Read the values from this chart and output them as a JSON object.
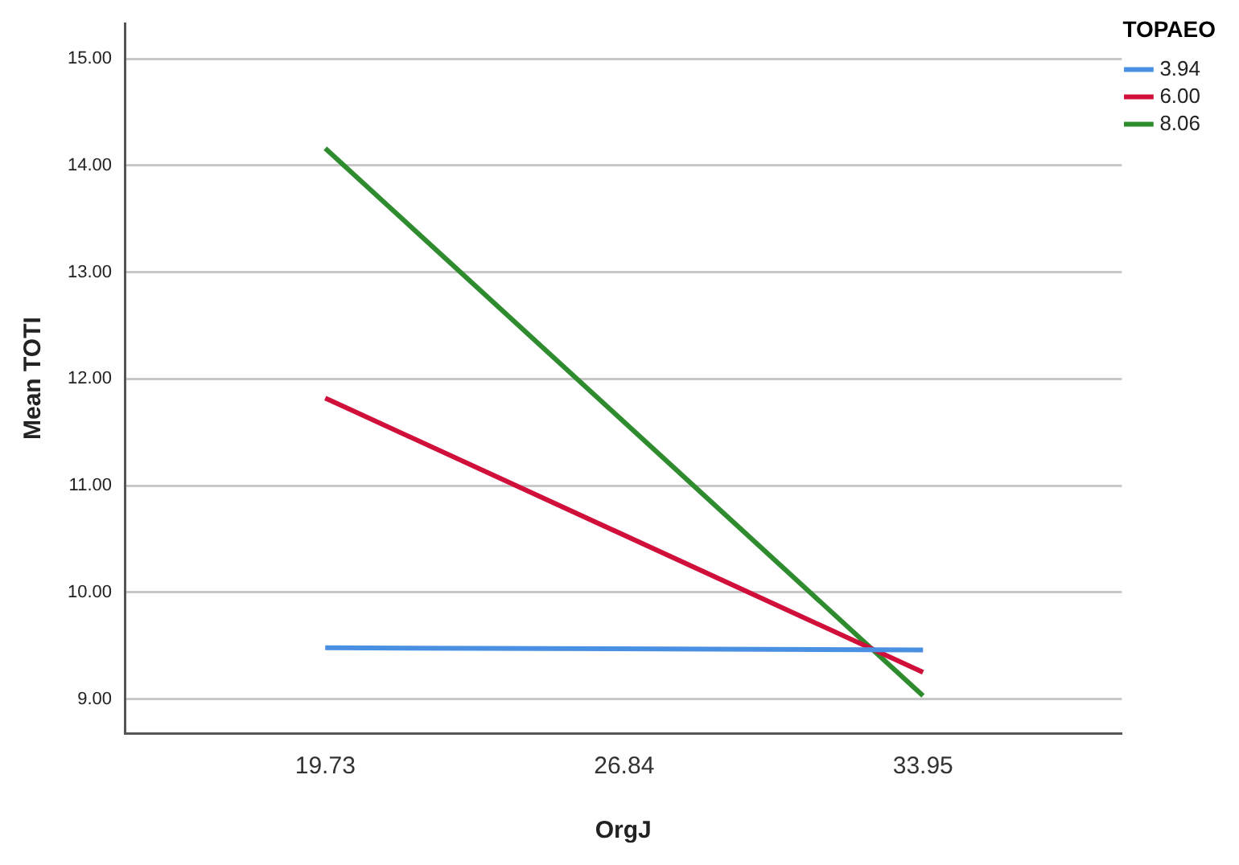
{
  "chart_data": {
    "type": "line",
    "xlabel": "OrgJ",
    "ylabel": "Mean TOTI",
    "legend_title": "TOPAEO",
    "x": [
      19.73,
      33.95
    ],
    "series": [
      {
        "name": "3.94",
        "color": "#4a90e2",
        "values": [
          9.48,
          9.46
        ]
      },
      {
        "name": "6.00",
        "color": "#d0103a",
        "values": [
          11.82,
          9.25
        ]
      },
      {
        "name": "8.06",
        "color": "#2e8b2e",
        "values": [
          14.16,
          9.03
        ]
      }
    ],
    "xlim": [
      14.96,
      38.68
    ],
    "xticks": [
      19.73,
      26.84,
      33.95
    ],
    "ylim": [
      8.68,
      15.33
    ],
    "yticks": [
      {
        "value": 9,
        "label": "9.00"
      },
      {
        "value": 10,
        "label": "10.00"
      },
      {
        "value": 11,
        "label": "11.00"
      },
      {
        "value": 12,
        "label": "12.00"
      },
      {
        "value": 13,
        "label": "13.00"
      },
      {
        "value": 14,
        "label": "14.00"
      },
      {
        "value": 15,
        "label": "15.00"
      }
    ],
    "grid": "y",
    "legend": "top right",
    "marker": "none",
    "line_style": "solid"
  }
}
